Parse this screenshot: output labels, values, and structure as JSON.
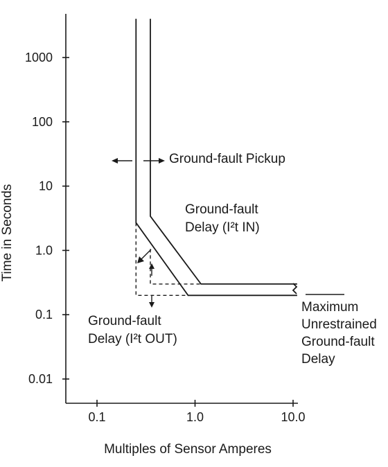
{
  "chart_data": {
    "type": "line",
    "title": "",
    "xlabel": "Multiples of Sensor Amperes",
    "ylabel": "Time in Seconds",
    "x_scale": "log",
    "y_scale": "log",
    "xlim": [
      0.05,
      14
    ],
    "ylim": [
      0.005,
      5000
    ],
    "x_ticks": [
      {
        "value": 0.1,
        "label": "0.1"
      },
      {
        "value": 1.0,
        "label": "1.0"
      },
      {
        "value": 10.0,
        "label": "10.0"
      }
    ],
    "y_ticks": [
      {
        "value": 1000,
        "label": "1000"
      },
      {
        "value": 100,
        "label": "100"
      },
      {
        "value": 10,
        "label": "10"
      },
      {
        "value": 1.0,
        "label": "1.0"
      },
      {
        "value": 0.1,
        "label": "0.1"
      },
      {
        "value": 0.01,
        "label": "0.01"
      }
    ],
    "grid": false,
    "legend": "none",
    "series": [
      {
        "key": "band-left",
        "style": "solid",
        "points": [
          [
            0.25,
            4000
          ],
          [
            0.25,
            2.7
          ],
          [
            0.85,
            0.2
          ],
          [
            11,
            0.2
          ]
        ]
      },
      {
        "key": "band-right",
        "style": "solid",
        "points": [
          [
            0.35,
            4000
          ],
          [
            0.35,
            3.4
          ],
          [
            1.15,
            0.3
          ],
          [
            11,
            0.3
          ]
        ]
      },
      {
        "key": "i2t-out-flat",
        "style": "dashed",
        "points": [
          [
            0.25,
            2.7
          ],
          [
            0.25,
            0.2
          ],
          [
            0.85,
            0.2
          ]
        ]
      },
      {
        "key": "i2t-out-inner",
        "style": "dashed",
        "points": [
          [
            0.35,
            1.05
          ],
          [
            0.35,
            0.3
          ],
          [
            1.15,
            0.3
          ]
        ]
      }
    ],
    "annotations": {
      "pickup": "Ground-fault Pickup",
      "delay_in_line1": "Ground-fault",
      "delay_in_line2": "Delay (I²t IN)",
      "delay_out_line1": "Ground-fault",
      "delay_out_line2": "Delay (I²t OUT)",
      "max_line1": "Maximum",
      "max_line2": "Unrestrained",
      "max_line3": "Ground-fault",
      "max_line4": "Delay"
    }
  }
}
